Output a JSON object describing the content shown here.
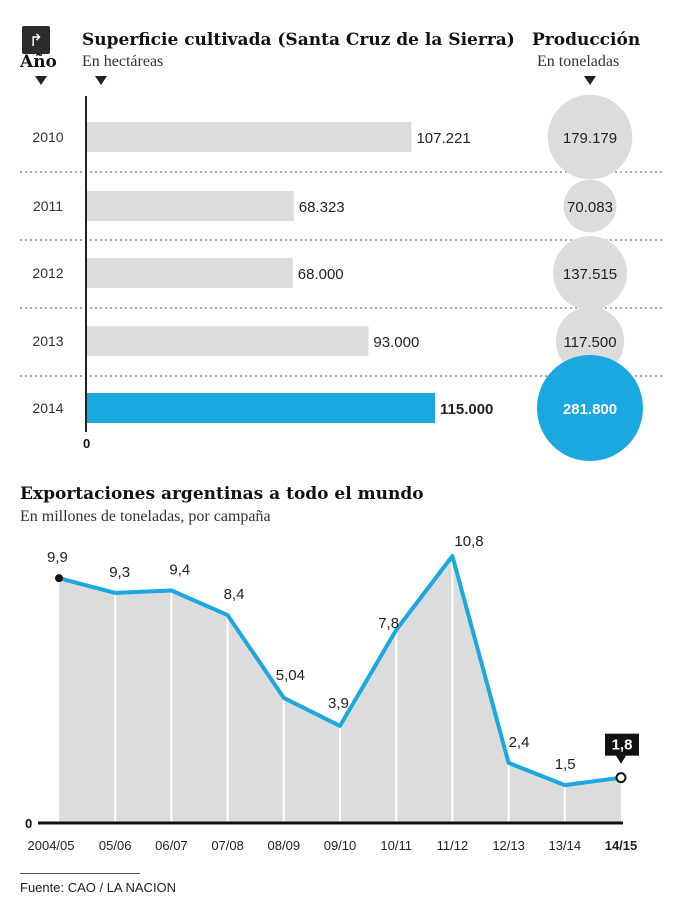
{
  "header": {
    "share_icon": "share-arrow-icon",
    "col_year": "Año",
    "area_title": "Superficie cultivada (Santa Cruz de la Sierra)",
    "area_unit": "En hectáreas",
    "prod_title": "Producción",
    "prod_unit": "En toneladas"
  },
  "chart_data": [
    {
      "type": "bar",
      "title": "Superficie cultivada (Santa Cruz de la Sierra)",
      "subtitle": "En hectáreas",
      "categories": [
        "2010",
        "2011",
        "2012",
        "2013",
        "2014"
      ],
      "values": [
        107221,
        68323,
        68000,
        93000,
        115000
      ],
      "value_labels": [
        "107.221",
        "68.323",
        "68.000",
        "93.000",
        "115.000"
      ],
      "axis_zero_label": "0",
      "highlight_index": 4,
      "colors": {
        "bar": "#dcdcdc",
        "highlight": "#1ba7e0"
      }
    },
    {
      "type": "bubble",
      "title": "Producción",
      "subtitle": "En toneladas",
      "categories": [
        "2010",
        "2011",
        "2012",
        "2013",
        "2014"
      ],
      "values": [
        179179,
        70083,
        137515,
        117500,
        281800
      ],
      "value_labels": [
        "179.179",
        "70.083",
        "137.515",
        "117.500",
        "281.800"
      ],
      "highlight_index": 4,
      "colors": {
        "bubble": "#dcdcdc",
        "highlight": "#1ba7e0"
      }
    },
    {
      "type": "area",
      "title": "Exportaciones argentinas a todo el mundo",
      "subtitle": "En millones de toneladas, por campaña",
      "categories": [
        "2004/05",
        "05/06",
        "06/07",
        "07/08",
        "08/09",
        "09/10",
        "10/11",
        "11/12",
        "12/13",
        "13/14",
        "14/15"
      ],
      "values": [
        9.9,
        9.3,
        9.4,
        8.4,
        5.04,
        3.9,
        7.8,
        10.8,
        2.4,
        1.5,
        1.8
      ],
      "value_labels": [
        "9,9",
        "9,3",
        "9,4",
        "8,4",
        "5,04",
        "3,9",
        "7,8",
        "10,8",
        "2,4",
        "1,5",
        "1,8"
      ],
      "axis_zero_label": "0",
      "ylim": [
        0,
        10.8
      ],
      "highlight_index": 10,
      "colors": {
        "line": "#1ba7e0",
        "fill": "#dcdcdc",
        "callout": "#111111"
      }
    }
  ],
  "footer": {
    "source": "Fuente: CAO / LA NACION"
  }
}
